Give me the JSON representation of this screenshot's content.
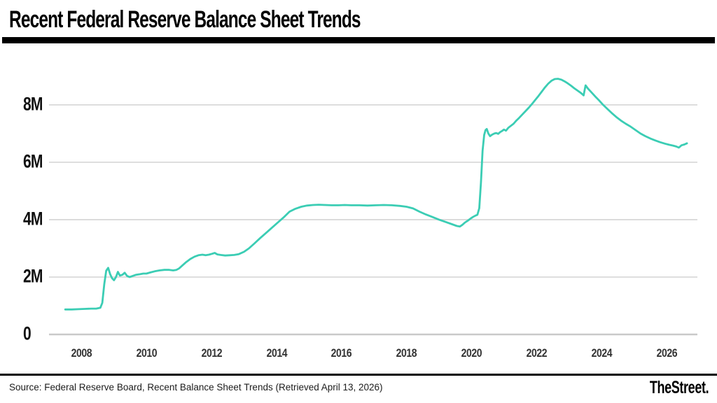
{
  "header": {
    "title": "Recent Federal Reserve Balance Sheet Trends"
  },
  "footer": {
    "source": "Source: Federal Reserve Board, Recent Balance Sheet Trends (Retrieved April 13, 2026)",
    "brand": "TheStreet."
  },
  "chart_data": {
    "type": "line",
    "title": "Recent Federal Reserve Balance Sheet Trends",
    "xlabel": "",
    "ylabel": "",
    "legend": "none",
    "grid": "horizontal",
    "line_color": "#3bcdb4",
    "grid_color": "#d9d9d9",
    "axis_line_color": "#c9c9c9",
    "xlim": [
      2007.0,
      2026.95
    ],
    "ylim": [
      0,
      9.46
    ],
    "x_ticks": [
      {
        "v": 2008,
        "label": "2008"
      },
      {
        "v": 2010,
        "label": "2010"
      },
      {
        "v": 2012,
        "label": "2012"
      },
      {
        "v": 2014,
        "label": "2014"
      },
      {
        "v": 2016,
        "label": "2016"
      },
      {
        "v": 2018,
        "label": "2018"
      },
      {
        "v": 2020,
        "label": "2020"
      },
      {
        "v": 2022,
        "label": "2022"
      },
      {
        "v": 2024,
        "label": "2024"
      },
      {
        "v": 2026,
        "label": "2026"
      }
    ],
    "y_ticks": [
      {
        "v": 0,
        "label": "0"
      },
      {
        "v": 2,
        "label": "2M"
      },
      {
        "v": 4,
        "label": "4M"
      },
      {
        "v": 6,
        "label": "6M"
      },
      {
        "v": 8,
        "label": "8M"
      }
    ],
    "points": [
      [
        2007.5,
        0.87
      ],
      [
        2007.7,
        0.87
      ],
      [
        2007.9,
        0.88
      ],
      [
        2008.1,
        0.89
      ],
      [
        2008.3,
        0.9
      ],
      [
        2008.45,
        0.9
      ],
      [
        2008.58,
        0.93
      ],
      [
        2008.64,
        1.1
      ],
      [
        2008.7,
        1.75
      ],
      [
        2008.76,
        2.22
      ],
      [
        2008.82,
        2.32
      ],
      [
        2008.88,
        2.1
      ],
      [
        2008.94,
        1.96
      ],
      [
        2009.0,
        1.89
      ],
      [
        2009.06,
        2.0
      ],
      [
        2009.12,
        2.18
      ],
      [
        2009.18,
        2.05
      ],
      [
        2009.26,
        2.08
      ],
      [
        2009.33,
        2.15
      ],
      [
        2009.4,
        2.04
      ],
      [
        2009.48,
        2.0
      ],
      [
        2009.58,
        2.04
      ],
      [
        2009.68,
        2.08
      ],
      [
        2009.8,
        2.1
      ],
      [
        2009.9,
        2.12
      ],
      [
        2010.0,
        2.12
      ],
      [
        2010.12,
        2.16
      ],
      [
        2010.25,
        2.2
      ],
      [
        2010.4,
        2.23
      ],
      [
        2010.55,
        2.25
      ],
      [
        2010.7,
        2.25
      ],
      [
        2010.82,
        2.23
      ],
      [
        2010.92,
        2.25
      ],
      [
        2011.0,
        2.3
      ],
      [
        2011.1,
        2.4
      ],
      [
        2011.22,
        2.52
      ],
      [
        2011.35,
        2.63
      ],
      [
        2011.48,
        2.71
      ],
      [
        2011.6,
        2.76
      ],
      [
        2011.72,
        2.78
      ],
      [
        2011.82,
        2.76
      ],
      [
        2011.92,
        2.78
      ],
      [
        2012.02,
        2.81
      ],
      [
        2012.1,
        2.84
      ],
      [
        2012.18,
        2.79
      ],
      [
        2012.28,
        2.77
      ],
      [
        2012.42,
        2.75
      ],
      [
        2012.56,
        2.76
      ],
      [
        2012.7,
        2.77
      ],
      [
        2012.84,
        2.8
      ],
      [
        2013.0,
        2.88
      ],
      [
        2013.15,
        3.0
      ],
      [
        2013.32,
        3.17
      ],
      [
        2013.5,
        3.36
      ],
      [
        2013.68,
        3.54
      ],
      [
        2013.86,
        3.72
      ],
      [
        2014.04,
        3.9
      ],
      [
        2014.22,
        4.08
      ],
      [
        2014.4,
        4.28
      ],
      [
        2014.58,
        4.38
      ],
      [
        2014.76,
        4.45
      ],
      [
        2014.94,
        4.49
      ],
      [
        2015.12,
        4.51
      ],
      [
        2015.3,
        4.52
      ],
      [
        2015.5,
        4.51
      ],
      [
        2015.7,
        4.5
      ],
      [
        2015.9,
        4.5
      ],
      [
        2016.1,
        4.51
      ],
      [
        2016.3,
        4.5
      ],
      [
        2016.55,
        4.5
      ],
      [
        2016.8,
        4.49
      ],
      [
        2017.05,
        4.5
      ],
      [
        2017.3,
        4.51
      ],
      [
        2017.55,
        4.5
      ],
      [
        2017.8,
        4.48
      ],
      [
        2018.0,
        4.45
      ],
      [
        2018.2,
        4.39
      ],
      [
        2018.4,
        4.28
      ],
      [
        2018.6,
        4.18
      ],
      [
        2018.8,
        4.09
      ],
      [
        2019.0,
        4.0
      ],
      [
        2019.2,
        3.92
      ],
      [
        2019.4,
        3.84
      ],
      [
        2019.55,
        3.78
      ],
      [
        2019.64,
        3.76
      ],
      [
        2019.72,
        3.82
      ],
      [
        2019.8,
        3.9
      ],
      [
        2019.88,
        3.96
      ],
      [
        2019.96,
        4.03
      ],
      [
        2020.04,
        4.09
      ],
      [
        2020.12,
        4.14
      ],
      [
        2020.18,
        4.17
      ],
      [
        2020.24,
        4.4
      ],
      [
        2020.29,
        5.3
      ],
      [
        2020.34,
        6.4
      ],
      [
        2020.39,
        6.95
      ],
      [
        2020.43,
        7.12
      ],
      [
        2020.47,
        7.16
      ],
      [
        2020.52,
        7.0
      ],
      [
        2020.57,
        6.91
      ],
      [
        2020.63,
        6.96
      ],
      [
        2020.7,
        7.0
      ],
      [
        2020.76,
        7.02
      ],
      [
        2020.82,
        6.99
      ],
      [
        2020.88,
        7.05
      ],
      [
        2020.94,
        7.09
      ],
      [
        2021.0,
        7.14
      ],
      [
        2021.06,
        7.1
      ],
      [
        2021.13,
        7.2
      ],
      [
        2021.21,
        7.27
      ],
      [
        2021.29,
        7.34
      ],
      [
        2021.37,
        7.44
      ],
      [
        2021.46,
        7.54
      ],
      [
        2021.56,
        7.66
      ],
      [
        2021.66,
        7.78
      ],
      [
        2021.76,
        7.9
      ],
      [
        2021.86,
        8.03
      ],
      [
        2021.96,
        8.17
      ],
      [
        2022.06,
        8.31
      ],
      [
        2022.16,
        8.46
      ],
      [
        2022.26,
        8.61
      ],
      [
        2022.36,
        8.74
      ],
      [
        2022.46,
        8.84
      ],
      [
        2022.56,
        8.9
      ],
      [
        2022.66,
        8.91
      ],
      [
        2022.76,
        8.88
      ],
      [
        2022.86,
        8.82
      ],
      [
        2022.96,
        8.75
      ],
      [
        2023.06,
        8.67
      ],
      [
        2023.16,
        8.58
      ],
      [
        2023.26,
        8.5
      ],
      [
        2023.36,
        8.42
      ],
      [
        2023.45,
        8.33
      ],
      [
        2023.51,
        8.68
      ],
      [
        2023.58,
        8.57
      ],
      [
        2023.68,
        8.45
      ],
      [
        2023.8,
        8.3
      ],
      [
        2023.92,
        8.16
      ],
      [
        2024.05,
        8.0
      ],
      [
        2024.18,
        7.86
      ],
      [
        2024.31,
        7.72
      ],
      [
        2024.45,
        7.58
      ],
      [
        2024.6,
        7.45
      ],
      [
        2024.75,
        7.34
      ],
      [
        2024.9,
        7.24
      ],
      [
        2025.05,
        7.12
      ],
      [
        2025.2,
        7.0
      ],
      [
        2025.35,
        6.91
      ],
      [
        2025.5,
        6.83
      ],
      [
        2025.65,
        6.76
      ],
      [
        2025.8,
        6.7
      ],
      [
        2025.95,
        6.65
      ],
      [
        2026.08,
        6.61
      ],
      [
        2026.2,
        6.58
      ],
      [
        2026.3,
        6.55
      ],
      [
        2026.38,
        6.51
      ],
      [
        2026.46,
        6.59
      ],
      [
        2026.55,
        6.62
      ],
      [
        2026.63,
        6.66
      ]
    ]
  }
}
